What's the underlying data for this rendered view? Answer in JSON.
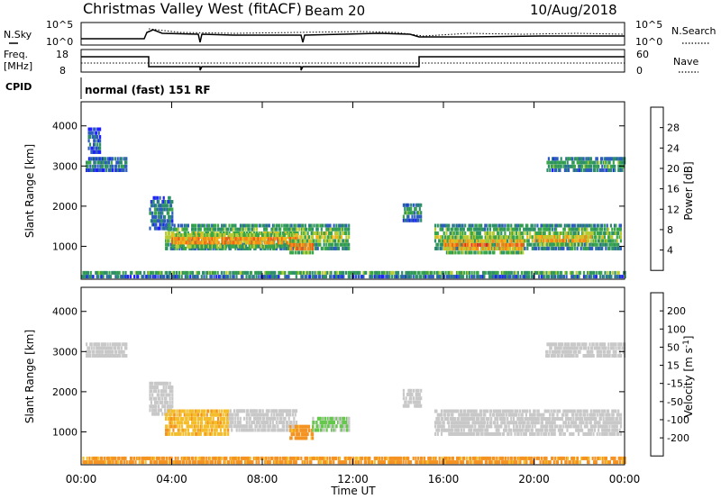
{
  "header": {
    "title": "Christmas Valley West (fitACF)",
    "beam": "Beam 20",
    "date": "10/Aug/2018"
  },
  "top_panels": {
    "nsky_label": "N.Sky",
    "nsearch_label": "N.Search",
    "nsky_ticks": [
      "10^5",
      "10^0"
    ],
    "nsearch_ticks": [
      "10^5",
      "10^0"
    ],
    "freq_label_1": "Freq.",
    "freq_label_2": "[MHz]",
    "freq_ticks": [
      "18",
      "8"
    ],
    "nave_label": "Nave",
    "nave_ticks": [
      "60",
      "0"
    ],
    "cpid_label": "CPID",
    "cpid_text": "normal (fast) 151 RF"
  },
  "chart_data": [
    {
      "type": "heatmap",
      "title": "Power",
      "ylabel": "Slant Range [km]",
      "ylim": [
        180,
        4600
      ],
      "yticks": [
        1000,
        2000,
        3000,
        4000
      ],
      "xlim": [
        0,
        24
      ],
      "xticks": [
        "00:00",
        "04:00",
        "08:00",
        "12:00",
        "16:00",
        "20:00",
        "00:00"
      ],
      "colorbar": {
        "label": "Power [dB]",
        "range": [
          0,
          32
        ],
        "ticks": [
          4,
          8,
          12,
          16,
          20,
          24,
          28
        ],
        "colors": [
          "#1f1fff",
          "#2e5dbe",
          "#2f8f6b",
          "#3aa64a",
          "#b7cc34",
          "#f0b51a",
          "#f48a1a",
          "#f15a16",
          "#e71f1f"
        ]
      },
      "regions": [
        {
          "t": [
            0.2,
            2.0
          ],
          "r": [
            2850,
            3150
          ],
          "v": 9
        },
        {
          "t": [
            0.3,
            0.8
          ],
          "r": [
            3300,
            3900
          ],
          "v": 6
        },
        {
          "t": [
            3.0,
            4.0
          ],
          "r": [
            1400,
            2200
          ],
          "v": 8
        },
        {
          "t": [
            3.7,
            11.8
          ],
          "r": [
            900,
            1500
          ],
          "v": 15
        },
        {
          "t": [
            4.0,
            9.5
          ],
          "r": [
            950,
            1250
          ],
          "v": 24
        },
        {
          "t": [
            9.2,
            10.2
          ],
          "r": [
            800,
            1100
          ],
          "v": 25
        },
        {
          "t": [
            14.2,
            15.0
          ],
          "r": [
            1600,
            2000
          ],
          "v": 10
        },
        {
          "t": [
            15.6,
            23.8
          ],
          "r": [
            900,
            1500
          ],
          "v": 14
        },
        {
          "t": [
            16.0,
            19.5
          ],
          "r": [
            800,
            1200
          ],
          "v": 23
        },
        {
          "t": [
            20.0,
            22.5
          ],
          "r": [
            1000,
            1250
          ],
          "v": 22
        },
        {
          "t": [
            20.5,
            24.0
          ],
          "r": [
            2850,
            3150
          ],
          "v": 12
        },
        {
          "t": [
            0.0,
            24.0
          ],
          "r": [
            200,
            380
          ],
          "v": 11
        }
      ]
    },
    {
      "type": "heatmap",
      "title": "Velocity",
      "ylabel": "Slant Range [km]",
      "ylim": [
        180,
        4600
      ],
      "yticks": [
        1000,
        2000,
        3000,
        4000
      ],
      "xlim": [
        0,
        24
      ],
      "xlabel": "Time UT",
      "xticks": [
        "00:00",
        "04:00",
        "08:00",
        "12:00",
        "16:00",
        "20:00",
        "00:00"
      ],
      "colorbar": {
        "label": "Velocity [m s^-1]",
        "ticks": [
          200,
          100,
          50,
          15,
          -15,
          -50,
          -100,
          -200
        ],
        "colors": [
          "#1c2fb8",
          "#2e6dbb",
          "#3d9c5e",
          "#64c84a",
          "#c8c8c8",
          "#f4bd2c",
          "#f49322",
          "#ef6a1c",
          "#e51c1c"
        ]
      },
      "regions": [
        {
          "t": [
            0.2,
            2.0
          ],
          "r": [
            2850,
            3150
          ],
          "v": 0
        },
        {
          "t": [
            3.0,
            4.0
          ],
          "r": [
            1400,
            2200
          ],
          "v": 0
        },
        {
          "t": [
            3.7,
            6.5
          ],
          "r": [
            900,
            1500
          ],
          "v": -40
        },
        {
          "t": [
            6.5,
            9.5
          ],
          "r": [
            1000,
            1500
          ],
          "v": 0
        },
        {
          "t": [
            9.2,
            10.2
          ],
          "r": [
            800,
            1100
          ],
          "v": -60
        },
        {
          "t": [
            10.2,
            11.8
          ],
          "r": [
            1000,
            1300
          ],
          "v": 20
        },
        {
          "t": [
            14.2,
            15.0
          ],
          "r": [
            1600,
            2000
          ],
          "v": 0
        },
        {
          "t": [
            15.6,
            23.8
          ],
          "r": [
            900,
            1500
          ],
          "v": 0
        },
        {
          "t": [
            20.5,
            24.0
          ],
          "r": [
            2850,
            3150
          ],
          "v": 0
        },
        {
          "t": [
            0.0,
            24.0
          ],
          "r": [
            200,
            380
          ],
          "v": -60
        }
      ]
    }
  ]
}
